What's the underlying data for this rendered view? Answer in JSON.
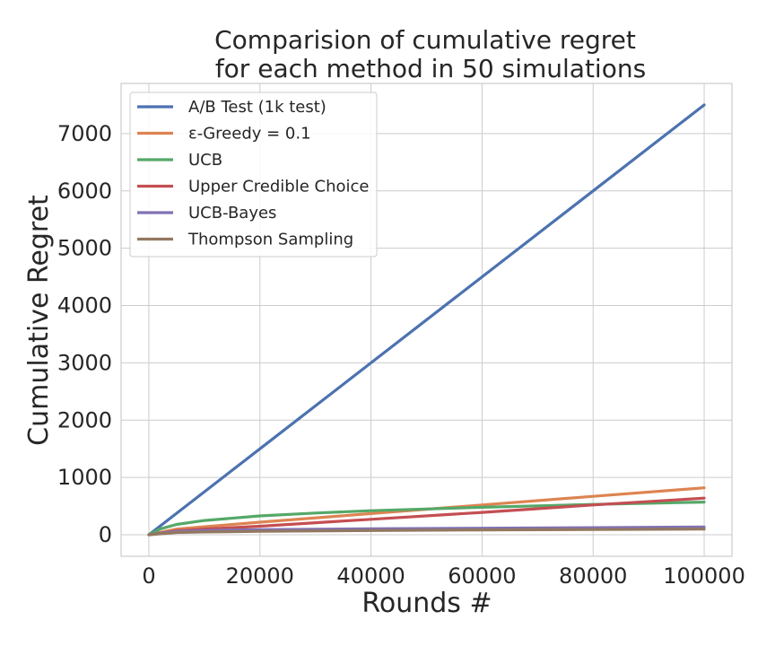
{
  "chart_data": {
    "type": "line",
    "title_lines": [
      "Comparision of cumulative regret",
      "for each method in 50 simulations"
    ],
    "xlabel": "Rounds #",
    "ylabel": "Cumulative Regret",
    "xlim": [
      -5000,
      105000
    ],
    "ylim": [
      -375,
      7875
    ],
    "xticks": [
      0,
      20000,
      40000,
      60000,
      80000,
      100000
    ],
    "yticks": [
      0,
      1000,
      2000,
      3000,
      4000,
      5000,
      6000,
      7000
    ],
    "grid": true,
    "legend_position": "top-left",
    "series": [
      {
        "name": "A/B Test (1k test)",
        "color": "#4c72b0",
        "x": [
          0,
          20000,
          40000,
          60000,
          80000,
          100000
        ],
        "y": [
          0,
          1500,
          3000,
          4500,
          6000,
          7500
        ]
      },
      {
        "name": "ε-Greedy = 0.1",
        "color": "#dd8452",
        "x": [
          0,
          5000,
          10000,
          20000,
          40000,
          60000,
          80000,
          100000
        ],
        "y": [
          0,
          100,
          140,
          220,
          370,
          520,
          670,
          820
        ]
      },
      {
        "name": "UCB",
        "color": "#55a868",
        "x": [
          0,
          2000,
          5000,
          10000,
          20000,
          30000,
          40000,
          50000,
          60000,
          70000,
          80000,
          90000,
          100000
        ],
        "y": [
          0,
          100,
          180,
          250,
          330,
          380,
          420,
          450,
          480,
          505,
          530,
          550,
          570
        ]
      },
      {
        "name": "Upper Credible Choice",
        "color": "#c44e52",
        "x": [
          0,
          5000,
          10000,
          20000,
          40000,
          60000,
          80000,
          100000
        ],
        "y": [
          0,
          70,
          100,
          150,
          270,
          390,
          520,
          640
        ]
      },
      {
        "name": "UCB-Bayes",
        "color": "#8172b3",
        "x": [
          0,
          5000,
          10000,
          20000,
          40000,
          60000,
          80000,
          100000
        ],
        "y": [
          0,
          60,
          75,
          90,
          105,
          115,
          125,
          135
        ]
      },
      {
        "name": "Thompson Sampling",
        "color": "#937860",
        "x": [
          0,
          5000,
          10000,
          20000,
          40000,
          60000,
          80000,
          100000
        ],
        "y": [
          0,
          40,
          50,
          60,
          75,
          85,
          92,
          100
        ]
      }
    ]
  }
}
